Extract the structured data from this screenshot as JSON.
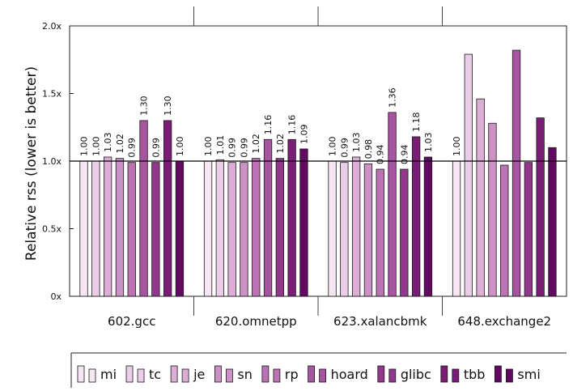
{
  "chart_data": {
    "type": "bar",
    "ylabel": "Relative rss (lower is better)",
    "xlabel": "",
    "ylim": [
      0,
      2.0
    ],
    "yticks": [
      0,
      0.5,
      1.0,
      1.5,
      2.0
    ],
    "ytick_labels": [
      "0x",
      "0.5x",
      "1.0x",
      "1.5x",
      "2.0x"
    ],
    "reference_line": 1.0,
    "categories": [
      "602.gcc",
      "620.omnetpp",
      "623.xalancbmk",
      "648.exchange2"
    ],
    "series": [
      {
        "name": "mi",
        "color": "#f6e6f3",
        "values": [
          1.0,
          1.0,
          1.0,
          1.0
        ]
      },
      {
        "name": "tc",
        "color": "#ebcde7",
        "values": [
          1.0,
          1.01,
          0.99,
          1.79
        ]
      },
      {
        "name": "je",
        "color": "#dcaed6",
        "values": [
          1.03,
          0.99,
          1.03,
          1.46
        ]
      },
      {
        "name": "sn",
        "color": "#cc91c5",
        "values": [
          1.02,
          0.99,
          0.98,
          1.28
        ]
      },
      {
        "name": "rp",
        "color": "#bb73b4",
        "values": [
          0.99,
          1.02,
          0.94,
          0.97
        ]
      },
      {
        "name": "hoard",
        "color": "#a855a1",
        "values": [
          1.3,
          1.16,
          1.36,
          1.82
        ]
      },
      {
        "name": "glibc",
        "color": "#92388c",
        "values": [
          0.99,
          1.02,
          0.94,
          0.99
        ]
      },
      {
        "name": "tbb",
        "color": "#7b1c76",
        "values": [
          1.3,
          1.16,
          1.18,
          1.32
        ]
      },
      {
        "name": "smi",
        "color": "#640962",
        "values": [
          1.0,
          1.09,
          1.03,
          1.1
        ]
      }
    ],
    "value_labels": [
      [
        "1.00",
        "1.00",
        "1.03",
        "1.02",
        "0.99",
        "1.30",
        "0.99",
        "1.30",
        "1.00"
      ],
      [
        "1.00",
        "1.01",
        "0.99",
        "0.99",
        "1.02",
        "1.16",
        "1.02",
        "1.16",
        "1.09"
      ],
      [
        "1.00",
        "0.99",
        "1.03",
        "0.98",
        "0.94",
        "1.36",
        "0.94",
        "1.18",
        "1.03"
      ],
      [
        "1.00",
        "1.79",
        "1.46",
        "1.28",
        "0.97",
        "1.82",
        "0.99",
        "1.32",
        "1.10"
      ]
    ],
    "hidden_value_labels": [
      [],
      [],
      [],
      [
        1,
        2,
        3,
        4,
        5,
        6,
        7,
        8
      ]
    ],
    "grid": false,
    "legend_position": "bottom"
  }
}
